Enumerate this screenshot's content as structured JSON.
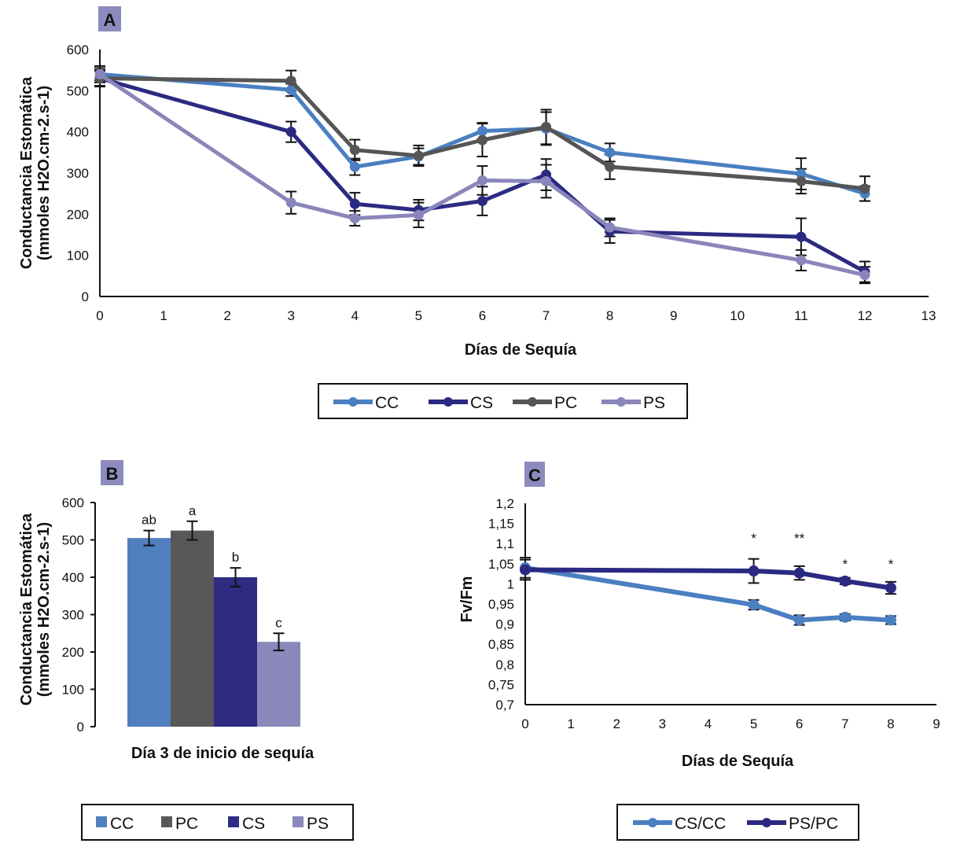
{
  "chart_data": [
    {
      "id": "A",
      "panel_label": "A",
      "type": "line",
      "title": "",
      "xlabel": "Días de Sequía",
      "ylabel": [
        "Conductancia Estomática",
        "(mmoles H2O.cm-2.s-1)"
      ],
      "xlim": [
        0,
        13
      ],
      "ylim": [
        0,
        600
      ],
      "xticks": [
        "0",
        "1",
        "2",
        "3",
        "4",
        "5",
        "6",
        "7",
        "8",
        "9",
        "10",
        "11",
        "12",
        "13"
      ],
      "yticks": [
        "0",
        "100",
        "200",
        "300",
        "400",
        "500",
        "600"
      ],
      "grid": false,
      "legend_position": "bottom",
      "x": [
        0,
        3,
        4,
        5,
        6,
        7,
        8,
        11,
        12
      ],
      "series": [
        {
          "name": "CC",
          "color": "#4a7fc1",
          "values": [
            540,
            502,
            315,
            340,
            402,
            408,
            350,
            298,
            250
          ],
          "errors": [
            20,
            15,
            20,
            20,
            20,
            40,
            22,
            38,
            18
          ]
        },
        {
          "name": "CS",
          "color": "#2b2a82",
          "values": [
            530,
            400,
            225,
            210,
            232,
            296,
            158,
            145,
            60
          ],
          "errors": [
            18,
            25,
            27,
            25,
            35,
            38,
            28,
            45,
            25
          ]
        },
        {
          "name": "PC",
          "color": "#555555",
          "values": [
            530,
            524,
            356,
            342,
            380,
            412,
            315,
            280,
            262
          ],
          "errors": [
            20,
            25,
            25,
            25,
            40,
            42,
            30,
            30,
            30
          ]
        },
        {
          "name": "PS",
          "color": "#8a86bb",
          "values": [
            540,
            228,
            190,
            198,
            282,
            280,
            168,
            88,
            52
          ],
          "errors": [
            15,
            27,
            18,
            30,
            35,
            40,
            22,
            25,
            20
          ]
        }
      ]
    },
    {
      "id": "B",
      "panel_label": "B",
      "type": "bar",
      "title": "",
      "xlabel": "Día 3 de inicio de sequía",
      "ylabel": [
        "Conductancia Estomática",
        "(mmoles H2O.cm-2.s-1)"
      ],
      "ylim": [
        0,
        600
      ],
      "yticks": [
        "0",
        "100",
        "200",
        "300",
        "400",
        "500",
        "600"
      ],
      "grid": false,
      "legend_position": "bottom",
      "categories": [
        "CC",
        "PC",
        "CS",
        "PS"
      ],
      "values": [
        505,
        525,
        400,
        227
      ],
      "errors": [
        20,
        25,
        25,
        23
      ],
      "colors": [
        "#4f7fbe",
        "#585858",
        "#2e2c82",
        "#8b88bb"
      ],
      "annotations": [
        "ab",
        "a",
        "b",
        "c"
      ]
    },
    {
      "id": "C",
      "panel_label": "C",
      "type": "line",
      "title": "",
      "xlabel": "Días de Sequía",
      "ylabel": "Fv/Fm",
      "xlim": [
        0,
        9
      ],
      "ylim": [
        0.7,
        1.2
      ],
      "xticks": [
        "0",
        "1",
        "2",
        "3",
        "4",
        "5",
        "6",
        "7",
        "8",
        "9"
      ],
      "yticks": [
        "0,7",
        "0,75",
        "0,8",
        "0,85",
        "0,9",
        "0,95",
        "1",
        "1,05",
        "1,1",
        "1,15",
        "1,2"
      ],
      "grid": false,
      "legend_position": "bottom",
      "x": [
        0,
        5,
        6,
        7,
        8
      ],
      "series": [
        {
          "name": "CS/CC",
          "color": "#4a7fc1",
          "values": [
            1.04,
            0.948,
            0.91,
            0.917,
            0.91
          ],
          "errors": [
            0.025,
            0.012,
            0.012,
            0.008,
            0.01
          ]
        },
        {
          "name": "PS/PC",
          "color": "#2b2a82",
          "values": [
            1.035,
            1.032,
            1.027,
            1.007,
            0.99
          ],
          "errors": [
            0.025,
            0.03,
            0.017,
            0.008,
            0.015
          ]
        }
      ],
      "significance": [
        {
          "x": 5,
          "label": "*"
        },
        {
          "x": 6,
          "label": "**"
        },
        {
          "x": 7,
          "label": "*"
        },
        {
          "x": 8,
          "label": "*"
        }
      ]
    }
  ]
}
